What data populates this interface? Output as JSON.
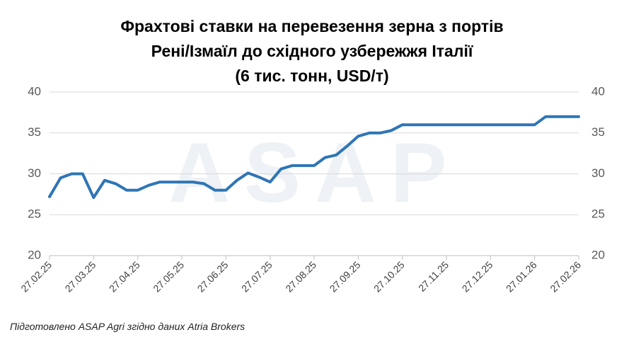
{
  "chart_data": {
    "type": "line",
    "title_lines": [
      "Фрахтові ставки на перевезення зерна з портів",
      "Рені/Ізмаїл до східного узбережжя Італії",
      "(6 тис. тонн, USD/т)"
    ],
    "watermark": "ASAP",
    "source": "Підготовлено ASAP Agri згідно даних Atria Brokers",
    "categories": [
      "27.02.25",
      null,
      null,
      null,
      "27.03.25",
      null,
      null,
      null,
      "27.04.25",
      null,
      null,
      null,
      "27.05.25",
      null,
      null,
      null,
      "27.06.25",
      null,
      null,
      null,
      "27.07.25",
      null,
      null,
      null,
      "27.08.25",
      null,
      null,
      null,
      "27.09.25",
      null,
      null,
      null,
      "27.10.25",
      null,
      null,
      null,
      "27.11.25",
      null,
      null,
      null,
      "27.12.25",
      null,
      null,
      null,
      "27.01.26",
      null,
      null,
      null,
      "27.02.26"
    ],
    "series": [
      {
        "color": "#2e75b6",
        "values": [
          27.2,
          29.5,
          30,
          30,
          27.1,
          29.2,
          28.8,
          28,
          28,
          28.6,
          29,
          29,
          29,
          29,
          28.8,
          28,
          28,
          29.2,
          30.1,
          29.6,
          29,
          30.6,
          31,
          31,
          31,
          32,
          32.3,
          33.4,
          34.6,
          35,
          35,
          35.3,
          36,
          36,
          36,
          36,
          36,
          36,
          36,
          36,
          36,
          36,
          36,
          36,
          36,
          37,
          37,
          37,
          37
        ]
      }
    ],
    "ylim": [
      20,
      40
    ],
    "yticks": [
      20,
      25,
      30,
      35,
      40
    ],
    "y2lim": [
      20,
      40
    ],
    "y2ticks": [
      20,
      25,
      30,
      35,
      40
    ],
    "grid": true
  }
}
